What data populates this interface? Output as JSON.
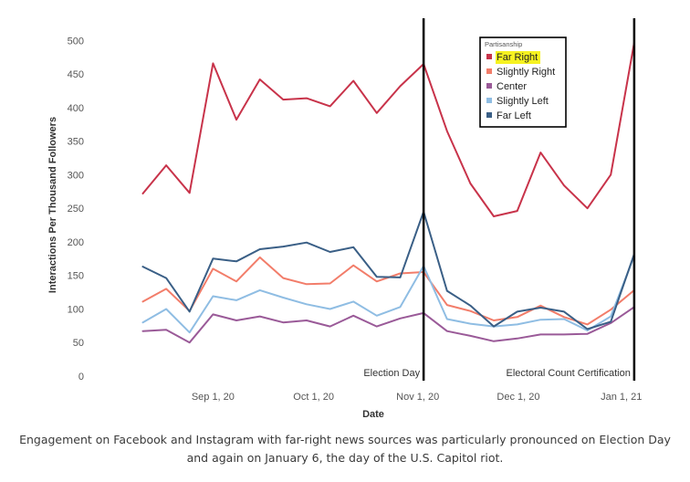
{
  "caption": "Engagement on Facebook and Instagram with far-right news sources was particularly pronounced on Election Day and again on January 6, the day of the U.S. Capitol riot.",
  "chart_data": {
    "type": "line",
    "title": "",
    "xlabel": "Date",
    "ylabel": "Interactions Per Thousand Followers",
    "ylim": [
      0,
      510
    ],
    "yticks": [
      0,
      50,
      100,
      150,
      200,
      250,
      300,
      350,
      400,
      450,
      500
    ],
    "x_range": [
      -1.5,
      21.2
    ],
    "xticks": [
      {
        "label": "Sep 1, 20",
        "x": 3.0
      },
      {
        "label": "Oct 1, 20",
        "x": 7.3
      },
      {
        "label": "Nov 1, 20",
        "x": 11.75
      },
      {
        "label": "Dec 1, 20",
        "x": 16.05
      },
      {
        "label": "Jan 1, 21",
        "x": 20.45
      }
    ],
    "x": [
      0,
      1,
      2,
      3,
      4,
      5,
      6,
      7,
      8,
      9,
      10,
      11,
      12,
      13,
      14,
      15,
      16,
      17,
      18,
      19,
      20,
      21
    ],
    "legend_title": "Partisanship",
    "legend_position": "top-right",
    "series": [
      {
        "name": "Far Right",
        "color": "#c8334a",
        "highlight": "#f6f221",
        "values": [
          272,
          314,
          273,
          466,
          382,
          442,
          412,
          414,
          402,
          440,
          392,
          432,
          465,
          365,
          287,
          238,
          246,
          333,
          284,
          250,
          300,
          497
        ]
      },
      {
        "name": "Slightly Right",
        "color": "#f27d6a",
        "highlight": "",
        "values": [
          111,
          130,
          97,
          160,
          141,
          177,
          146,
          137,
          138,
          165,
          141,
          153,
          155,
          106,
          97,
          83,
          88,
          105,
          88,
          77,
          99,
          128
        ]
      },
      {
        "name": "Center",
        "color": "#9a5a98",
        "highlight": "",
        "values": [
          67,
          69,
          50,
          92,
          83,
          89,
          80,
          83,
          74,
          90,
          74,
          86,
          94,
          67,
          60,
          52,
          56,
          62,
          62,
          63,
          79,
          103
        ]
      },
      {
        "name": "Slightly Left",
        "color": "#8fbde3",
        "highlight": "",
        "values": [
          80,
          100,
          65,
          119,
          113,
          128,
          117,
          107,
          100,
          111,
          90,
          103,
          164,
          85,
          78,
          74,
          77,
          84,
          85,
          68,
          89,
          179
        ]
      },
      {
        "name": "Far Left",
        "color": "#3a5f86",
        "highlight": "",
        "values": [
          163,
          146,
          96,
          175,
          171,
          189,
          193,
          199,
          185,
          192,
          148,
          147,
          245,
          127,
          105,
          74,
          96,
          102,
          96,
          70,
          81,
          182
        ]
      }
    ],
    "annotations": [
      {
        "label": "Election Day",
        "x": 12
      },
      {
        "label": "Electoral Count Certification",
        "x": 21
      }
    ]
  }
}
